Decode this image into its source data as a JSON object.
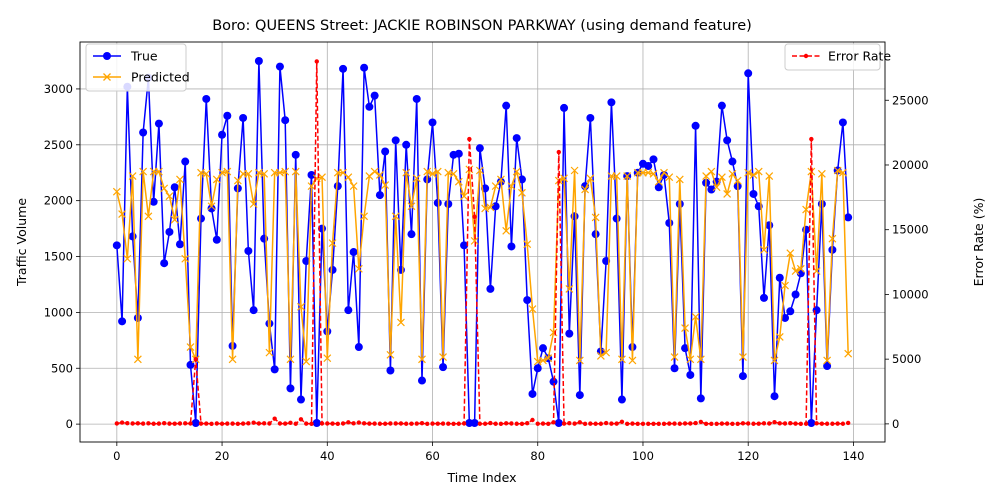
{
  "chart_data": {
    "type": "line",
    "title": "Boro: QUEENS Street: JACKIE ROBINSON PARKWAY (using demand feature)",
    "xlabel": "Time Index",
    "ylabel": "Traffic Volume",
    "ylabel_right": "Error Rate (%)",
    "xlim": [
      -7,
      146
    ],
    "ylim": [
      -160,
      3420
    ],
    "ylim_right": [
      -1400,
      29500
    ],
    "x_ticks": [
      0,
      20,
      40,
      60,
      80,
      100,
      120,
      140
    ],
    "y_ticks": [
      0,
      500,
      1000,
      1500,
      2000,
      2500,
      3000
    ],
    "y_ticks_right": [
      0,
      5000,
      10000,
      15000,
      20000,
      25000
    ],
    "grid": true,
    "legend_left": "top-left",
    "legend_right": "top-right",
    "series": [
      {
        "name": "True",
        "axis": "left",
        "color": "#0000ff",
        "marker": "circle",
        "values": [
          1600,
          920,
          3020,
          1680,
          950,
          2610,
          3100,
          1990,
          2690,
          1440,
          1720,
          2120,
          1610,
          2350,
          530,
          10,
          1840,
          2910,
          1930,
          1650,
          2590,
          2760,
          700,
          2110,
          2740,
          1550,
          1020,
          3250,
          1660,
          900,
          490,
          3200,
          2720,
          320,
          2410,
          220,
          1460,
          2230,
          10,
          1750,
          830,
          1380,
          2130,
          3180,
          1020,
          1540,
          690,
          3190,
          2840,
          2940,
          2050,
          2440,
          480,
          2540,
          1380,
          2500,
          1700,
          2910,
          390,
          2190,
          2700,
          1980,
          510,
          1970,
          2410,
          2420,
          1600,
          10,
          10,
          2470,
          2110,
          1210,
          1950,
          2170,
          2850,
          1590,
          2560,
          2190,
          1110,
          270,
          500,
          680,
          590,
          380,
          10,
          2830,
          810,
          1860,
          260,
          2130,
          2740,
          1700,
          650,
          1460,
          2880,
          1840,
          220,
          2220,
          690,
          2250,
          2330,
          2310,
          2370,
          2120,
          2230,
          1800,
          500,
          1970,
          680,
          440,
          2670,
          230,
          2160,
          2100,
          2170,
          2850,
          2540,
          2350,
          2130,
          430,
          3140,
          2060,
          1950,
          1130,
          1780,
          250,
          1310,
          950,
          1010,
          1160,
          1350,
          1740,
          10,
          1020,
          1970,
          520,
          1560,
          2270,
          2700,
          1850
        ]
      },
      {
        "name": "Predicted",
        "axis": "left",
        "color": "#ffa500",
        "marker": "x",
        "values": [
          2080,
          1880,
          1480,
          2220,
          580,
          2260,
          1860,
          2260,
          2260,
          2110,
          2040,
          1830,
          2190,
          1480,
          690,
          580,
          2250,
          2240,
          1950,
          2190,
          2250,
          2260,
          580,
          2180,
          2240,
          2240,
          1970,
          2250,
          2240,
          640,
          2250,
          2250,
          2260,
          580,
          2260,
          1050,
          560,
          2130,
          2200,
          2210,
          590,
          1620,
          2250,
          2250,
          2210,
          2130,
          1390,
          1860,
          2220,
          2260,
          2230,
          2140,
          620,
          1860,
          910,
          2250,
          1950,
          2200,
          580,
          2260,
          2240,
          2260,
          600,
          2250,
          2240,
          2170,
          2040,
          2280,
          1640,
          2270,
          1930,
          1940,
          2130,
          2190,
          1730,
          2130,
          2260,
          2070,
          1610,
          1030,
          560,
          570,
          590,
          820,
          2180,
          2200,
          1210,
          2270,
          570,
          2100,
          2200,
          1850,
          610,
          640,
          2220,
          2220,
          580,
          2220,
          570,
          2250,
          2250,
          2250,
          2240,
          2170,
          2250,
          2210,
          600,
          2190,
          860,
          580,
          960,
          580,
          2220,
          2260,
          2120,
          2210,
          2060,
          2240,
          2180,
          600,
          2250,
          2230,
          2260,
          1560,
          2220,
          570,
          780,
          1240,
          1530,
          1370,
          1390,
          1920,
          2260,
          1370,
          2240,
          570,
          1660,
          2270,
          2250,
          630
        ]
      },
      {
        "name": "Error Rate",
        "axis": "right",
        "color": "#ff0000",
        "marker": "point",
        "linestyle": "dashed",
        "values": [
          30,
          100,
          50,
          30,
          40,
          20,
          40,
          10,
          20,
          50,
          20,
          15,
          30,
          40,
          30,
          5000,
          20,
          25,
          5,
          30,
          10,
          20,
          20,
          5,
          20,
          40,
          90,
          30,
          40,
          30,
          400,
          30,
          20,
          80,
          10,
          350,
          20,
          5,
          28000,
          30,
          30,
          20,
          5,
          30,
          120,
          40,
          100,
          40,
          20,
          20,
          10,
          10,
          30,
          30,
          30,
          10,
          15,
          25,
          50,
          5,
          20,
          15,
          20,
          15,
          5,
          10,
          30,
          22000,
          16000,
          10,
          10,
          60,
          10,
          5,
          40,
          30,
          10,
          5,
          50,
          300,
          10,
          20,
          5,
          120,
          21000,
          20,
          50,
          20,
          120,
          5,
          20,
          10,
          10,
          60,
          20,
          20,
          160,
          5,
          20,
          5,
          5,
          5,
          5,
          5,
          5,
          20,
          20,
          10,
          30,
          30,
          60,
          150,
          5,
          5,
          5,
          20,
          20,
          5,
          5,
          40,
          30,
          10,
          15,
          40,
          30,
          130,
          40,
          30,
          50,
          20,
          5,
          10,
          22000,
          40,
          15,
          10,
          10,
          20,
          10,
          70
        ]
      }
    ]
  }
}
